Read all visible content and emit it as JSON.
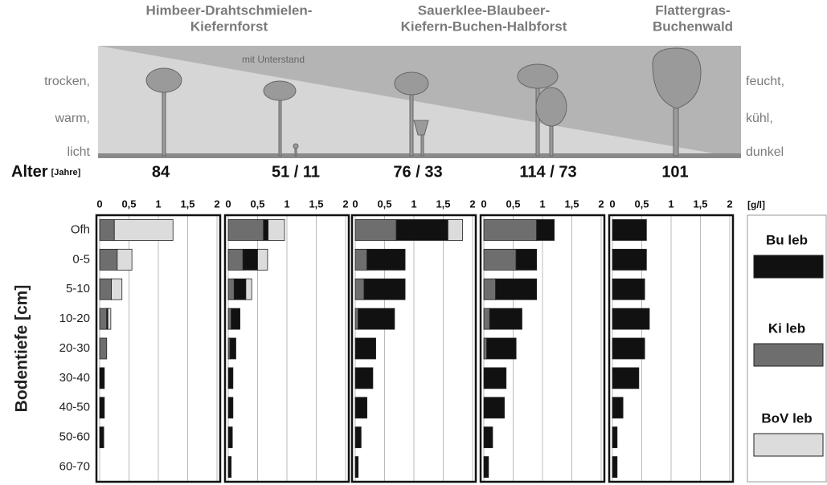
{
  "illustration": {
    "titles": [
      [
        "Himbeer-Drahtschmielen-",
        "Kiefernforst"
      ],
      [
        "Sauerklee-Blaubeer-",
        "Kiefern-Buchen-Halbforst"
      ],
      [
        "Flattergras-",
        "Buchenwald"
      ]
    ],
    "note": "mit Unterstand",
    "left_labels": [
      "trocken,",
      "warm,",
      "licht"
    ],
    "right_labels": [
      "feucht,",
      "kühl,",
      "dunkel"
    ],
    "age_label": "Alter",
    "age_unit": "[Jahre]",
    "ages": [
      "84",
      "51 / 11",
      "76 / 33",
      "114 / 73",
      "101"
    ]
  },
  "chart_data": {
    "type": "bar",
    "orientation": "horizontal",
    "stacked": true,
    "y_label": "Bodentiefe [cm]",
    "unit": "[g/l]",
    "categories": [
      "Ofh",
      "0-5",
      "5-10",
      "10-20",
      "20-30",
      "30-40",
      "40-50",
      "50-60",
      "60-70"
    ],
    "xlim": [
      0,
      2
    ],
    "xticks": [
      0,
      {
        "value": 0.5,
        "label": "0,5"
      },
      1,
      {
        "value": 1.5,
        "label": "1,5"
      },
      2
    ],
    "grid": true,
    "series": [
      {
        "name": "Bu leb",
        "color": "#111111",
        "values": [
          [
            0,
            0,
            0,
            0.02,
            0,
            0.08,
            0.08,
            0.07,
            0
          ],
          [
            0.08,
            0.25,
            0.2,
            0.15,
            0.1,
            0.08,
            0.08,
            0.07,
            0.05
          ],
          [
            0.88,
            0.65,
            0.7,
            0.62,
            0.35,
            0.3,
            0.2,
            0.1,
            0.05
          ],
          [
            0.3,
            0.35,
            0.7,
            0.55,
            0.5,
            0.38,
            0.35,
            0.15,
            0.08
          ],
          [
            0.58,
            0.58,
            0.55,
            0.63,
            0.55,
            0.45,
            0.18,
            0.08,
            0.08
          ]
        ]
      },
      {
        "name": "Ki leb",
        "color": "#6e6e6e",
        "values": [
          [
            0.25,
            0.3,
            0.2,
            0.12,
            0.12,
            0,
            0,
            0,
            0
          ],
          [
            0.6,
            0.25,
            0.1,
            0.05,
            0.03,
            0,
            0,
            0,
            0
          ],
          [
            0.7,
            0.2,
            0.15,
            0.05,
            0,
            0,
            0,
            0,
            0
          ],
          [
            0.9,
            0.55,
            0.2,
            0.1,
            0.05,
            0,
            0,
            0,
            0
          ],
          [
            0,
            0,
            0,
            0,
            0,
            0,
            0,
            0,
            0
          ]
        ]
      },
      {
        "name": "BoV leb",
        "color": "#dcdcdc",
        "values": [
          [
            1.0,
            0.25,
            0.18,
            0.05,
            0,
            0,
            0,
            0,
            0
          ],
          [
            0.28,
            0.17,
            0.1,
            0,
            0,
            0,
            0,
            0,
            0
          ],
          [
            0.25,
            0,
            0,
            0,
            0,
            0,
            0,
            0,
            0
          ],
          [
            0,
            0,
            0,
            0,
            0,
            0,
            0,
            0,
            0
          ],
          [
            0,
            0,
            0,
            0,
            0,
            0,
            0,
            0,
            0
          ]
        ]
      }
    ]
  }
}
